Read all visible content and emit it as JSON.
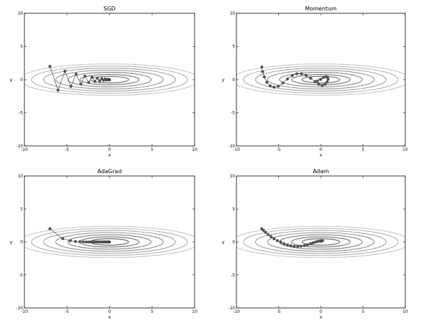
{
  "chart_data": [
    {
      "type": "line",
      "title": "SGD",
      "xlabel": "x",
      "ylabel": "y",
      "xlim": [
        -10,
        10
      ],
      "ylim": [
        -10,
        10
      ],
      "xticks": [
        "-10",
        "-5",
        "0",
        "5",
        "10"
      ],
      "yticks": [
        "10",
        "5",
        "0",
        "-5",
        "-10"
      ],
      "grid": false,
      "contours": {
        "function": "x^2/20 + y^2",
        "levels": [
          0.25,
          0.6,
          1.2,
          2.0,
          3.0,
          4.2,
          5.6
        ]
      },
      "x": [
        -7.0,
        -6.05,
        -5.24,
        -4.54,
        -3.92,
        -3.37,
        -2.88,
        -2.45,
        -2.06,
        -1.72,
        -1.42,
        -1.15,
        -0.91,
        -0.7,
        -0.51,
        -0.35,
        -0.21,
        -0.08,
        0.0
      ],
      "y": [
        2.0,
        -1.6,
        1.28,
        -1.02,
        0.82,
        -0.66,
        0.52,
        -0.42,
        0.34,
        -0.27,
        0.22,
        -0.17,
        0.14,
        -0.11,
        0.09,
        -0.07,
        0.06,
        -0.04,
        0.0
      ]
    },
    {
      "type": "line",
      "title": "Momentum",
      "xlabel": "x",
      "ylabel": "y",
      "xlim": [
        -10,
        10
      ],
      "ylim": [
        -10,
        10
      ],
      "xticks": [
        "-10",
        "-5",
        "0",
        "5",
        "10"
      ],
      "yticks": [
        "10",
        "5",
        "0",
        "-5",
        "-10"
      ],
      "grid": false,
      "contours": {
        "function": "x^2/20 + y^2",
        "levels": [
          0.25,
          0.6,
          1.2,
          2.0,
          3.0,
          4.2,
          5.6
        ]
      },
      "x": [
        -7.0,
        -6.9,
        -6.7,
        -6.4,
        -6.0,
        -5.55,
        -5.05,
        -4.5,
        -3.95,
        -3.4,
        -2.85,
        -2.3,
        -1.75,
        -1.2,
        -0.7,
        -0.25,
        0.15,
        0.5,
        0.75,
        0.85,
        0.8,
        0.6,
        0.3,
        -0.05,
        -0.4
      ],
      "y": [
        1.9,
        1.2,
        0.4,
        -0.4,
        -0.95,
        -1.15,
        -1.0,
        -0.5,
        0.1,
        0.6,
        0.88,
        0.9,
        0.65,
        0.2,
        -0.3,
        -0.7,
        -0.85,
        -0.7,
        -0.35,
        0.05,
        0.35,
        0.45,
        0.3,
        0.05,
        -0.2
      ]
    },
    {
      "type": "line",
      "title": "AdaGrad",
      "xlabel": "x",
      "ylabel": "y",
      "xlim": [
        -10,
        10
      ],
      "ylim": [
        -10,
        10
      ],
      "xticks": [
        "-10",
        "-5",
        "0",
        "5",
        "10"
      ],
      "yticks": [
        "10",
        "5",
        "0",
        "-5",
        "-10"
      ],
      "grid": false,
      "contours": {
        "function": "x^2/20 + y^2",
        "levels": [
          0.25,
          0.6,
          1.2,
          2.0,
          3.0,
          4.2,
          5.6
        ]
      },
      "x": [
        -7.0,
        -5.5,
        -4.6,
        -4.0,
        -3.5,
        -3.1,
        -2.75,
        -2.45,
        -2.17,
        -1.92,
        -1.69,
        -1.48,
        -1.28,
        -1.1,
        -0.93,
        -0.77,
        -0.62,
        -0.48,
        -0.35,
        -0.23,
        -0.12,
        -0.02
      ],
      "y": [
        2.0,
        0.5,
        0.18,
        0.07,
        0.03,
        0.01,
        0.0,
        0.0,
        0.0,
        0.0,
        0.0,
        0.0,
        0.0,
        0.0,
        0.0,
        0.0,
        0.0,
        0.0,
        0.0,
        0.0,
        0.0,
        0.0
      ]
    },
    {
      "type": "line",
      "title": "Adam",
      "xlabel": "x",
      "ylabel": "y",
      "xlim": [
        -10,
        10
      ],
      "ylim": [
        -10,
        10
      ],
      "xticks": [
        "-10",
        "-5",
        "0",
        "5",
        "10"
      ],
      "yticks": [
        "10",
        "5",
        "0",
        "-5",
        "-10"
      ],
      "grid": false,
      "contours": {
        "function": "x^2/20 + y^2",
        "levels": [
          0.25,
          0.6,
          1.2,
          2.0,
          3.0,
          4.2,
          5.6
        ]
      },
      "x": [
        -7.0,
        -6.8,
        -6.55,
        -6.25,
        -5.9,
        -5.55,
        -5.15,
        -4.75,
        -4.35,
        -3.95,
        -3.55,
        -3.15,
        -2.75,
        -2.35,
        -1.95,
        -1.6,
        -1.25,
        -0.95,
        -0.65,
        -0.4,
        -0.15,
        0.05,
        0.2
      ],
      "y": [
        2.0,
        1.75,
        1.45,
        1.12,
        0.8,
        0.48,
        0.2,
        -0.05,
        -0.27,
        -0.45,
        -0.58,
        -0.66,
        -0.68,
        -0.64,
        -0.55,
        -0.42,
        -0.28,
        -0.14,
        -0.02,
        0.08,
        0.14,
        0.17,
        0.17
      ]
    }
  ]
}
